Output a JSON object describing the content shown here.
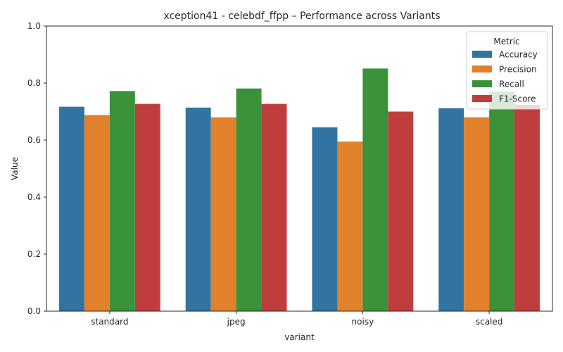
{
  "chart_data": {
    "type": "bar",
    "title": "xception41 - celebdf_ffpp – Performance across Variants",
    "xlabel": "variant",
    "ylabel": "Value",
    "ylim": [
      0,
      1.0
    ],
    "yticks": [
      "0.0",
      "0.2",
      "0.4",
      "0.6",
      "0.8",
      "1.0"
    ],
    "categories": [
      "standard",
      "jpeg",
      "noisy",
      "scaled"
    ],
    "grid": false,
    "legend": {
      "title": "Metric",
      "placement": "top-right"
    },
    "series": [
      {
        "name": "Accuracy",
        "color": "#3274a1",
        "values": [
          0.717,
          0.714,
          0.645,
          0.712
        ]
      },
      {
        "name": "Precision",
        "color": "#e1812c",
        "values": [
          0.688,
          0.68,
          0.595,
          0.68
        ]
      },
      {
        "name": "Recall",
        "color": "#3a923a",
        "values": [
          0.772,
          0.781,
          0.851,
          0.77
        ]
      },
      {
        "name": "F1-Score",
        "color": "#c03d3e",
        "values": [
          0.727,
          0.727,
          0.7,
          0.724
        ]
      }
    ]
  }
}
